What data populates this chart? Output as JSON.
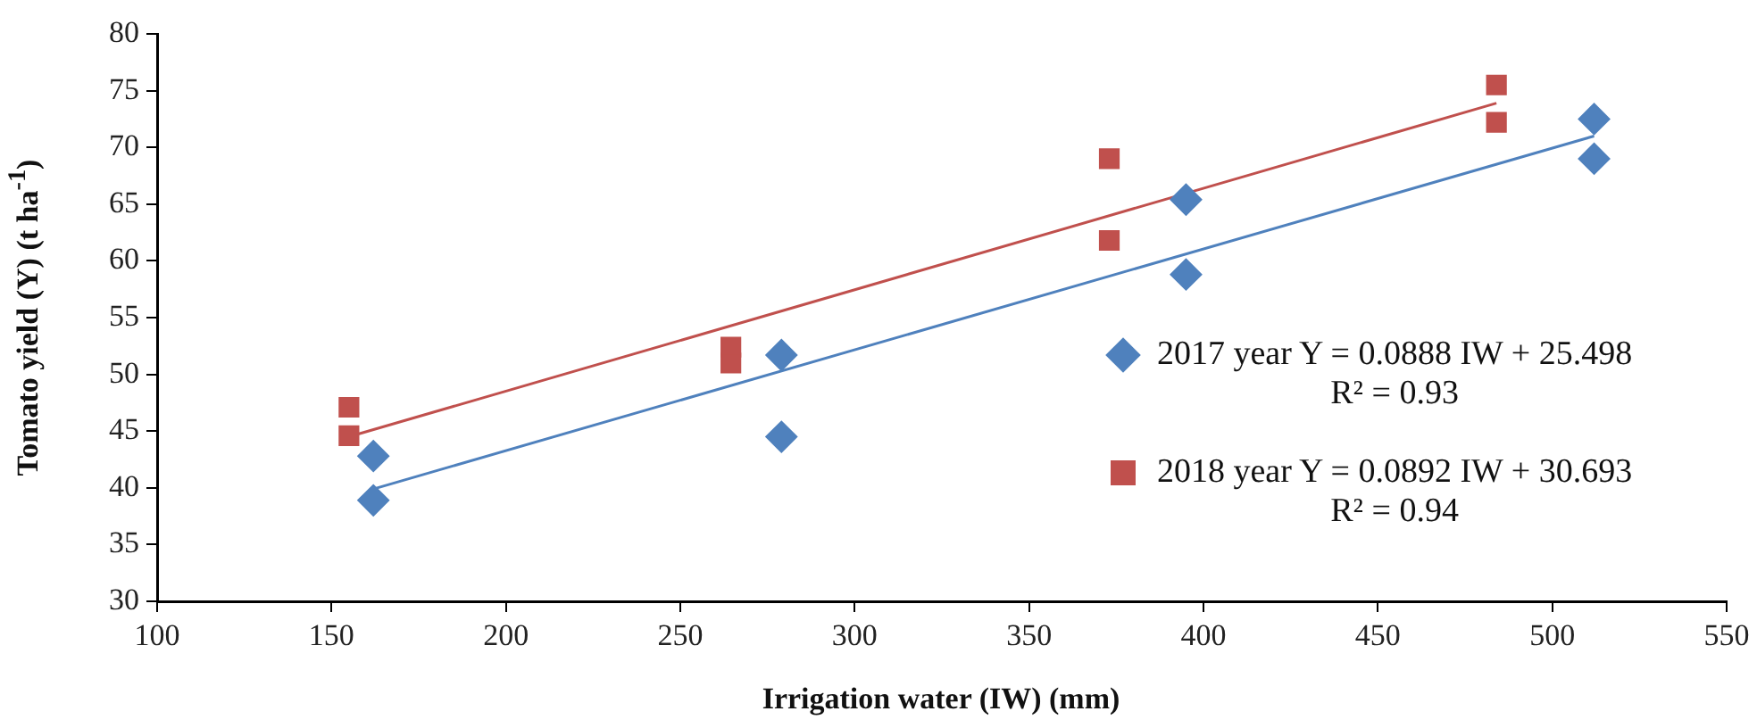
{
  "chart_data": {
    "type": "scatter",
    "xlabel": "Irrigation water  (IW) (mm)",
    "ylabel": "Tomato yield (Y) (t ha$^{-1}$)",
    "xlim": [
      100,
      550
    ],
    "xticks": [
      100,
      150,
      200,
      250,
      300,
      350,
      400,
      450,
      500,
      550
    ],
    "ylim": [
      30,
      80
    ],
    "yticks": [
      30,
      35,
      40,
      45,
      50,
      55,
      60,
      65,
      70,
      75,
      80
    ],
    "grid": false,
    "legend": "right",
    "annotations": [
      "R² = 0.93",
      "R² = 0.94"
    ],
    "series": [
      {
        "name": "2017 year Y = 0.0888 IW + 25.498",
        "color": "#4f81bd",
        "marker": "diamond",
        "x": [
          162,
          162,
          279,
          279,
          395,
          395,
          512,
          512
        ],
        "values": [
          42.8,
          38.9,
          51.7,
          44.5,
          65.4,
          58.8,
          72.5,
          69.0
        ]
      },
      {
        "name": "2018 year Y = 0.0892 IW + 30.693",
        "color": "#c0504d",
        "marker": "square",
        "x": [
          155,
          155,
          264.5,
          264.5,
          373,
          373,
          484,
          484
        ],
        "values": [
          47.1,
          44.6,
          52.4,
          51.0,
          69.0,
          61.8,
          75.5,
          72.2
        ]
      },
      {
        "type": "line",
        "color": "#4f81bd",
        "marker": "none",
        "x": [
          162,
          512
        ],
        "values": [
          39.9,
          71.0
        ]
      },
      {
        "type": "line",
        "color": "#c0504d",
        "marker": "none",
        "x": [
          155,
          484
        ],
        "values": [
          44.5,
          73.9
        ]
      }
    ]
  }
}
